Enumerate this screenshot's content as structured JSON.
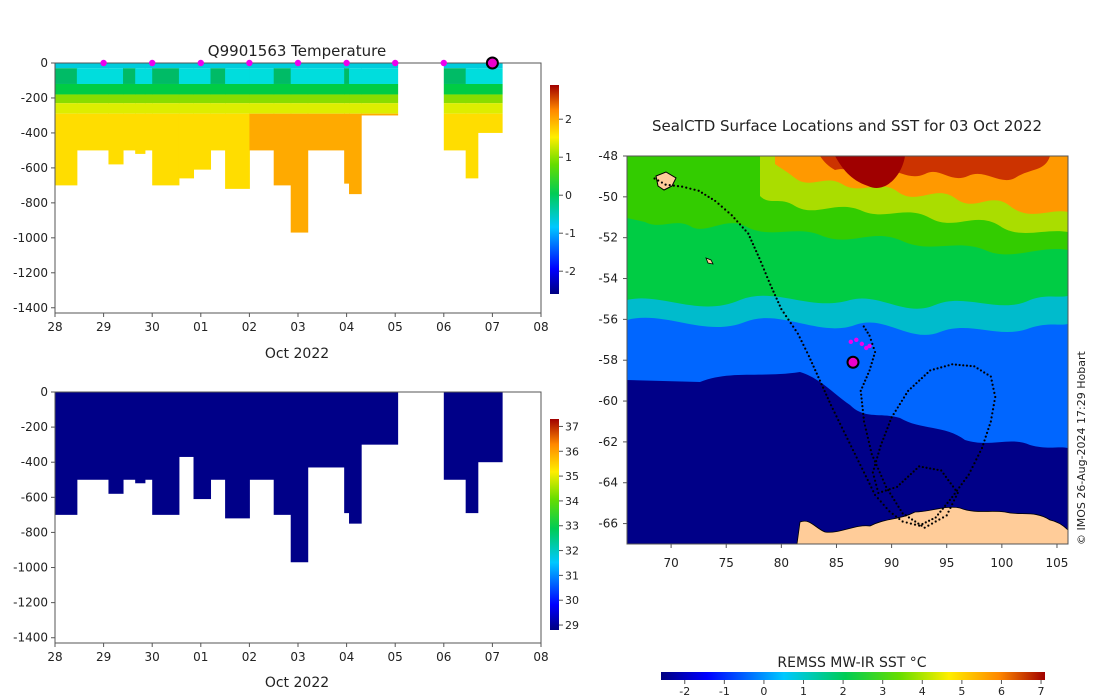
{
  "chart_data": [
    {
      "type": "heatmap",
      "name": "temperature-profiles",
      "title": "Q9901563  Temperature",
      "xlabel": "Oct 2022",
      "ylabel": "",
      "x_ticks": [
        "28",
        "29",
        "30",
        "01",
        "02",
        "03",
        "04",
        "05",
        "06",
        "07",
        "08"
      ],
      "y_ticks": [
        0,
        -200,
        -400,
        -600,
        -800,
        -1000,
        -1200,
        -1400
      ],
      "ylim": [
        -1430,
        0
      ],
      "colorbar": {
        "min": -2.6,
        "max": 2.9,
        "ticks": [
          2,
          1,
          0,
          -1,
          -2
        ]
      },
      "surface_markers_day": [
        1,
        2,
        3,
        4,
        5,
        6,
        7,
        8,
        9
      ],
      "current_marker_day": 9,
      "profiles": [
        {
          "x0": 0.0,
          "x1": 0.45,
          "depth": 700
        },
        {
          "x0": 0.45,
          "x1": 1.1,
          "depth": 500
        },
        {
          "x0": 1.1,
          "x1": 1.4,
          "depth": 580
        },
        {
          "x0": 1.4,
          "x1": 1.65,
          "depth": 500
        },
        {
          "x0": 1.65,
          "x1": 1.85,
          "depth": 520
        },
        {
          "x0": 1.85,
          "x1": 2.0,
          "depth": 500
        },
        {
          "x0": 2.0,
          "x1": 2.55,
          "depth": 700
        },
        {
          "x0": 2.55,
          "x1": 2.85,
          "depth": 660
        },
        {
          "x0": 2.85,
          "x1": 3.2,
          "depth": 610
        },
        {
          "x0": 3.2,
          "x1": 3.5,
          "depth": 500
        },
        {
          "x0": 3.5,
          "x1": 4.0,
          "depth": 720
        },
        {
          "x0": 4.0,
          "x1": 4.5,
          "depth": 500
        },
        {
          "x0": 4.5,
          "x1": 4.85,
          "depth": 700
        },
        {
          "x0": 4.85,
          "x1": 5.2,
          "depth": 970
        },
        {
          "x0": 5.2,
          "x1": 5.95,
          "depth": 500
        },
        {
          "x0": 5.95,
          "x1": 6.05,
          "depth": 690
        },
        {
          "x0": 6.05,
          "x1": 6.3,
          "depth": 750
        },
        {
          "x0": 6.3,
          "x1": 7.05,
          "depth": 300
        },
        {
          "x0": 8.0,
          "x1": 8.45,
          "depth": 500
        },
        {
          "x0": 8.45,
          "x1": 8.7,
          "depth": 660
        },
        {
          "x0": 8.7,
          "x1": 9.2,
          "depth": 400
        }
      ]
    },
    {
      "type": "heatmap",
      "name": "salinity-profiles",
      "title": "",
      "xlabel": "Oct 2022",
      "ylabel": "",
      "x_ticks": [
        "28",
        "29",
        "30",
        "01",
        "02",
        "03",
        "04",
        "05",
        "06",
        "07",
        "08"
      ],
      "y_ticks": [
        0,
        -200,
        -400,
        -600,
        -800,
        -1000,
        -1200,
        -1400
      ],
      "ylim": [
        -1430,
        0
      ],
      "colorbar": {
        "min": 28.8,
        "max": 37.3,
        "ticks": [
          37,
          36,
          35,
          34,
          33,
          32,
          31,
          30,
          29
        ]
      },
      "profiles": [
        {
          "x0": 0.0,
          "x1": 0.45,
          "depth": 700
        },
        {
          "x0": 0.45,
          "x1": 1.1,
          "depth": 500
        },
        {
          "x0": 1.1,
          "x1": 1.4,
          "depth": 580
        },
        {
          "x0": 1.4,
          "x1": 1.65,
          "depth": 500
        },
        {
          "x0": 1.65,
          "x1": 1.85,
          "depth": 520
        },
        {
          "x0": 1.85,
          "x1": 2.0,
          "depth": 500
        },
        {
          "x0": 2.0,
          "x1": 2.55,
          "depth": 700
        },
        {
          "x0": 2.55,
          "x1": 2.85,
          "depth": 370
        },
        {
          "x0": 2.85,
          "x1": 3.2,
          "depth": 610
        },
        {
          "x0": 3.2,
          "x1": 3.5,
          "depth": 500
        },
        {
          "x0": 3.5,
          "x1": 4.0,
          "depth": 720
        },
        {
          "x0": 4.0,
          "x1": 4.5,
          "depth": 500
        },
        {
          "x0": 4.5,
          "x1": 4.85,
          "depth": 700
        },
        {
          "x0": 4.85,
          "x1": 5.2,
          "depth": 970
        },
        {
          "x0": 5.2,
          "x1": 5.95,
          "depth": 430
        },
        {
          "x0": 5.95,
          "x1": 6.05,
          "depth": 690
        },
        {
          "x0": 6.05,
          "x1": 6.3,
          "depth": 750
        },
        {
          "x0": 6.3,
          "x1": 7.05,
          "depth": 300
        },
        {
          "x0": 8.0,
          "x1": 8.45,
          "depth": 500
        },
        {
          "x0": 8.45,
          "x1": 8.7,
          "depth": 690
        },
        {
          "x0": 8.7,
          "x1": 9.2,
          "depth": 400
        }
      ]
    },
    {
      "type": "heatmap",
      "name": "sst-map",
      "title": "SealCTD Surface Locations and SST for 03 Oct 2022",
      "xlabel": "",
      "ylabel": "",
      "x_ticks": [
        70,
        75,
        80,
        85,
        90,
        95,
        100,
        105
      ],
      "y_ticks": [
        -48,
        -50,
        -52,
        -54,
        -56,
        -58,
        -60,
        -62,
        -64,
        -66
      ],
      "xlim": [
        66,
        106
      ],
      "ylim": [
        -67,
        -48
      ],
      "colorbar": {
        "label": "REMSS MW-IR SST °C",
        "min": -2.6,
        "max": 7.1,
        "ticks": [
          -2,
          -1,
          0,
          1,
          2,
          3,
          4,
          5,
          6,
          7
        ]
      },
      "current_position": {
        "lon": 86.5,
        "lat": -58.1
      },
      "recent_positions": [
        [
          86.3,
          -57.1
        ],
        [
          86.8,
          -57.0
        ],
        [
          87.3,
          -57.2
        ],
        [
          87.7,
          -57.4
        ],
        [
          88.0,
          -57.3
        ]
      ],
      "track": [
        [
          68.5,
          -49.1
        ],
        [
          69.5,
          -49.4
        ],
        [
          71.0,
          -49.5
        ],
        [
          72.5,
          -49.7
        ],
        [
          74.0,
          -50.2
        ],
        [
          75.5,
          -50.9
        ],
        [
          77.0,
          -51.8
        ],
        [
          78.0,
          -53.0
        ],
        [
          79.0,
          -54.3
        ],
        [
          80.0,
          -55.5
        ],
        [
          81.5,
          -56.7
        ],
        [
          82.5,
          -57.8
        ],
        [
          83.5,
          -59.0
        ],
        [
          84.5,
          -60.2
        ],
        [
          85.5,
          -61.3
        ],
        [
          86.5,
          -62.4
        ],
        [
          87.5,
          -63.5
        ],
        [
          88.5,
          -64.6
        ],
        [
          89.8,
          -65.4
        ],
        [
          91.0,
          -65.9
        ],
        [
          92.5,
          -66.1
        ],
        [
          94.0,
          -65.7
        ],
        [
          95.5,
          -64.7
        ],
        [
          97.0,
          -63.6
        ],
        [
          98.2,
          -62.3
        ],
        [
          99.0,
          -61.0
        ],
        [
          99.4,
          -59.8
        ],
        [
          99.0,
          -58.8
        ],
        [
          97.5,
          -58.3
        ],
        [
          95.5,
          -58.2
        ],
        [
          93.5,
          -58.5
        ],
        [
          91.5,
          -59.5
        ],
        [
          90.0,
          -60.8
        ],
        [
          89.0,
          -62.2
        ],
        [
          88.3,
          -63.5
        ],
        [
          88.8,
          -64.5
        ],
        [
          90.5,
          -64.2
        ],
        [
          92.5,
          -63.2
        ],
        [
          94.5,
          -63.4
        ],
        [
          96.0,
          -64.5
        ],
        [
          95.0,
          -65.6
        ],
        [
          93.0,
          -66.2
        ],
        [
          91.0,
          -65.5
        ],
        [
          89.5,
          -64.2
        ],
        [
          88.2,
          -62.6
        ],
        [
          87.5,
          -61.0
        ],
        [
          87.2,
          -59.5
        ],
        [
          88.0,
          -58.5
        ],
        [
          88.5,
          -57.6
        ],
        [
          88.0,
          -56.8
        ],
        [
          87.3,
          -56.2
        ]
      ]
    }
  ],
  "watermark": "© IMOS 26-Aug-2024 17:29 Hobart"
}
